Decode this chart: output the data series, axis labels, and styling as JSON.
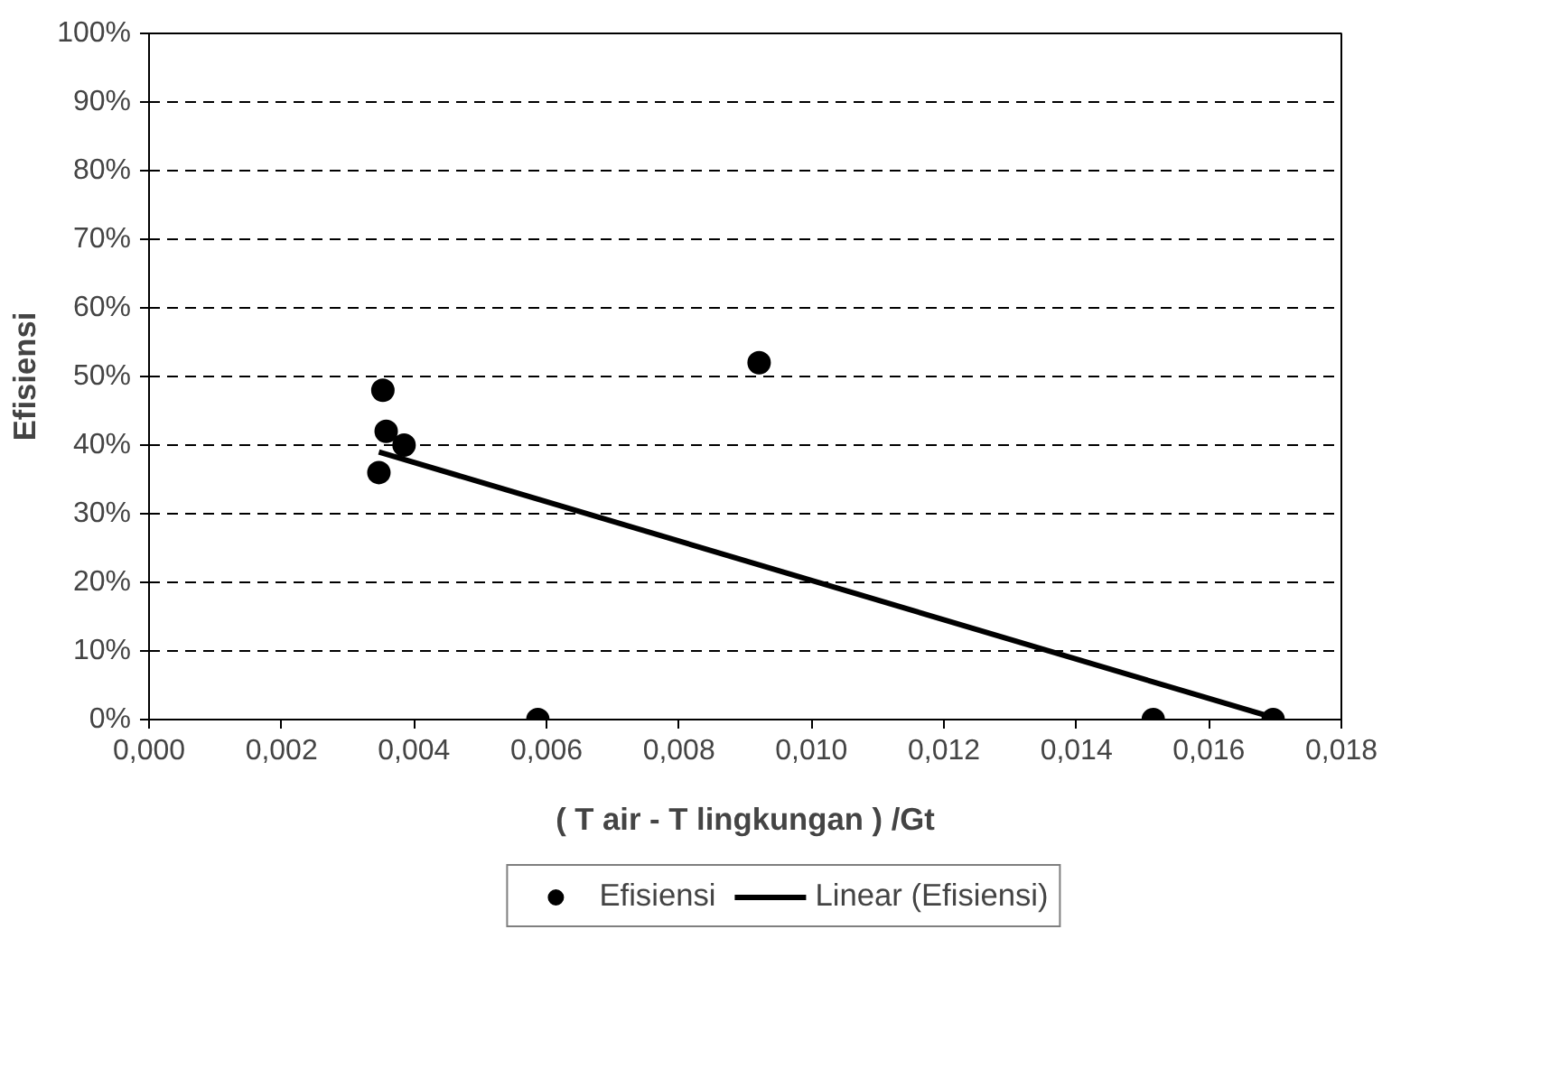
{
  "chart_data": {
    "type": "scatter",
    "xlabel": "( T air - T lingkungan ) /Gt",
    "ylabel": "Efisiensi",
    "xlim": [
      0,
      0.018
    ],
    "ylim": [
      0,
      100
    ],
    "xticks": [
      {
        "value": 0,
        "label": "0,000"
      },
      {
        "value": 0.002,
        "label": "0,002"
      },
      {
        "value": 0.004,
        "label": "0,004"
      },
      {
        "value": 0.006,
        "label": "0,006"
      },
      {
        "value": 0.008,
        "label": "0,008"
      },
      {
        "value": 0.01,
        "label": "0,010"
      },
      {
        "value": 0.012,
        "label": "0,012"
      },
      {
        "value": 0.014,
        "label": "0,014"
      },
      {
        "value": 0.016,
        "label": "0,016"
      },
      {
        "value": 0.018,
        "label": "0,018"
      }
    ],
    "yticks": [
      {
        "value": 0,
        "label": "0%"
      },
      {
        "value": 10,
        "label": "10%"
      },
      {
        "value": 20,
        "label": "20%"
      },
      {
        "value": 30,
        "label": "30%"
      },
      {
        "value": 40,
        "label": "40%"
      },
      {
        "value": 50,
        "label": "50%"
      },
      {
        "value": 60,
        "label": "60%"
      },
      {
        "value": 70,
        "label": "70%"
      },
      {
        "value": 80,
        "label": "80%"
      },
      {
        "value": 90,
        "label": "90%"
      },
      {
        "value": 100,
        "label": "100%"
      }
    ],
    "grid": "y",
    "legend": "bottom",
    "series": [
      {
        "name": "Efisiensi",
        "marker": "circle",
        "color": "#000000",
        "x": [
          0.00353,
          0.00358,
          0.00385,
          0.00347,
          0.00921,
          0.00587,
          0.01516,
          0.01697
        ],
        "values": [
          48,
          42,
          40,
          36,
          52,
          0,
          0,
          0
        ]
      },
      {
        "name": "Linear (Efisiensi)",
        "type": "line",
        "marker": "none",
        "line_style": "solid",
        "color": "#000000",
        "x": [
          0.00347,
          0.01697
        ],
        "values": [
          39,
          0.3
        ]
      }
    ]
  }
}
